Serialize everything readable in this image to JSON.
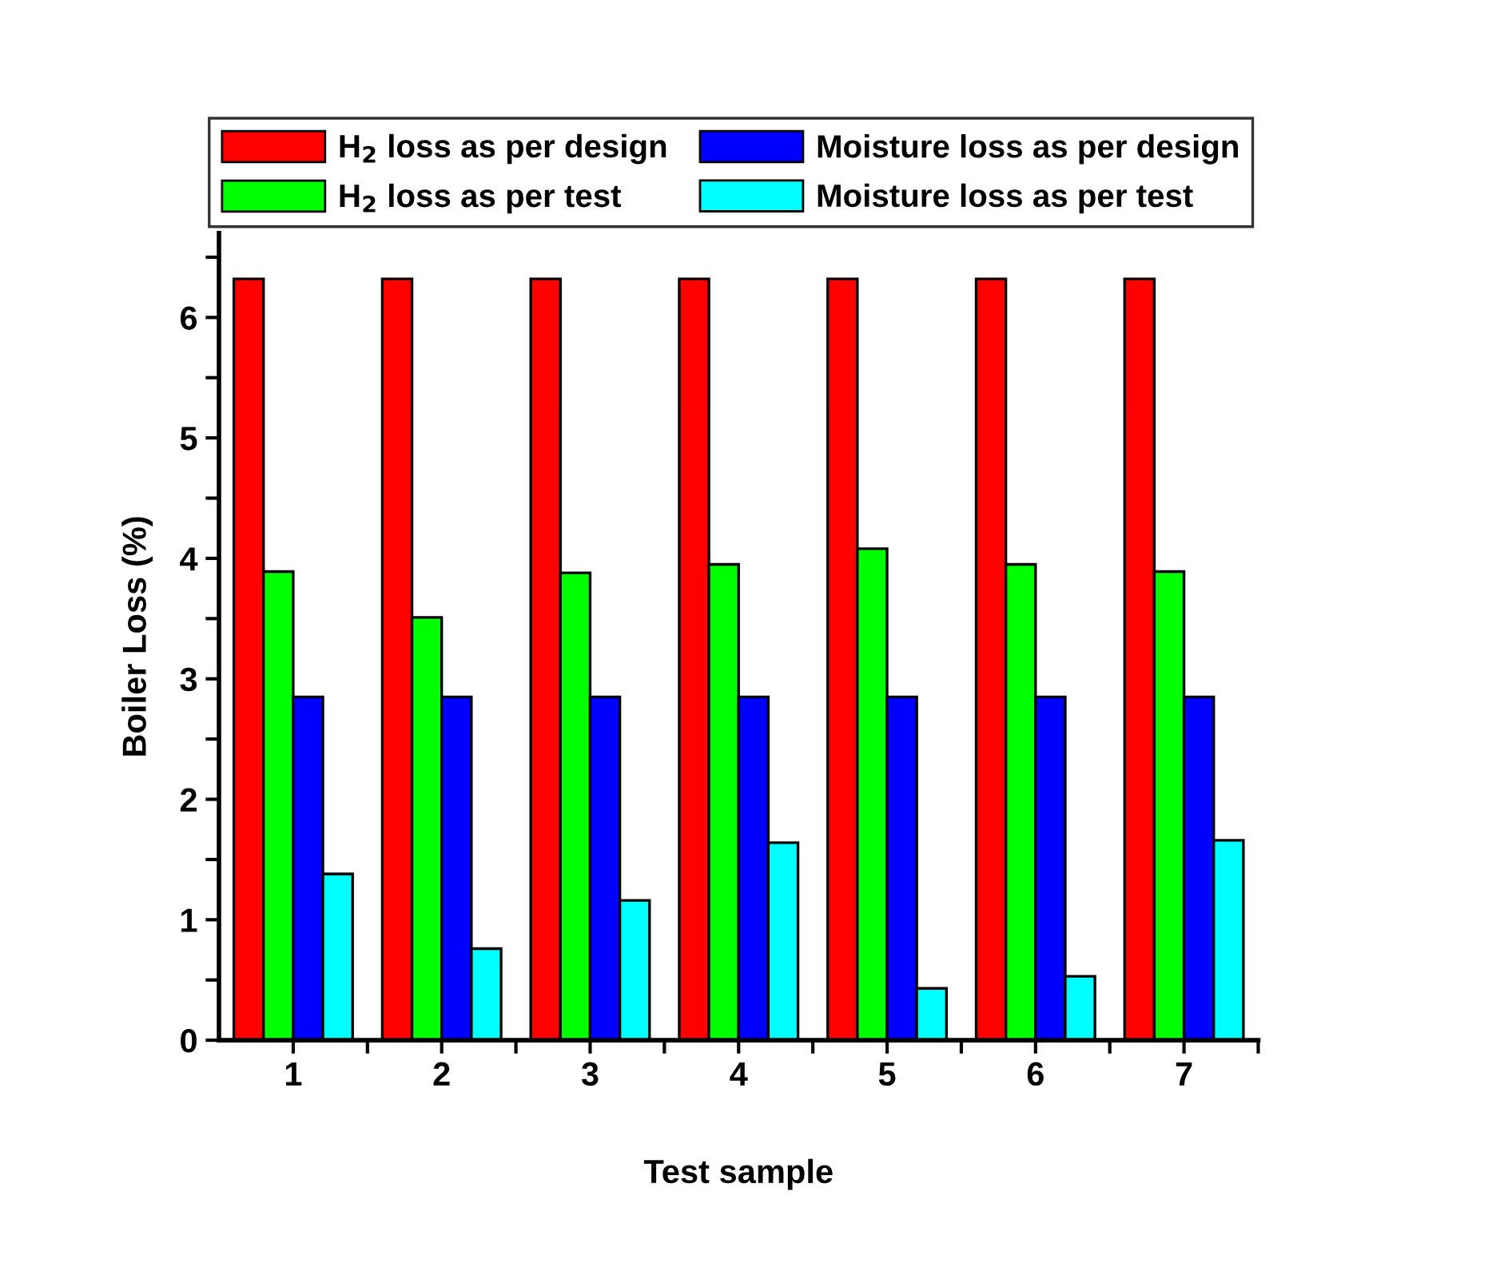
{
  "chart_data": {
    "type": "bar",
    "xlabel": "Test sample",
    "ylabel": "Boiler Loss (%)",
    "x": [
      1,
      2,
      3,
      4,
      5,
      6,
      7
    ],
    "series": [
      {
        "name": "H$_{2}$ loss as per design",
        "color": "#ff0000",
        "values": [
          6.32,
          6.32,
          6.32,
          6.32,
          6.32,
          6.32,
          6.32
        ]
      },
      {
        "name": "H$_{2}$ loss as per test",
        "color": "#00ff00",
        "values": [
          3.89,
          3.51,
          3.88,
          3.95,
          4.08,
          3.95,
          3.89
        ]
      },
      {
        "name": "Moisture loss as per design",
        "color": "#0000ff",
        "values": [
          2.85,
          2.85,
          2.85,
          2.85,
          2.85,
          2.85,
          2.85
        ]
      },
      {
        "name": "Moisture loss as per test",
        "color": "#00ffff",
        "values": [
          1.38,
          0.76,
          1.16,
          1.64,
          0.43,
          0.53,
          1.66
        ]
      }
    ],
    "xlim": [
      0.5,
      7.5
    ],
    "xticks": [
      1,
      {
        "value": 1.5,
        "label": null
      },
      2,
      {
        "value": 2.5,
        "label": null
      },
      3,
      {
        "value": 3.5,
        "label": null
      },
      4,
      {
        "value": 4.5,
        "label": null
      },
      5,
      {
        "value": 5.5,
        "label": null
      },
      6,
      {
        "value": 6.5,
        "label": null
      },
      7,
      {
        "value": 7.5,
        "label": null
      }
    ],
    "ylim": [
      0,
      6.7
    ],
    "yticks": [
      0,
      {
        "value": 0.5,
        "label": null
      },
      1,
      {
        "value": 1.5,
        "label": null
      },
      2,
      {
        "value": 2.5,
        "label": null
      },
      3,
      {
        "value": 3.5,
        "label": null
      },
      4,
      {
        "value": 4.5,
        "label": null
      },
      5,
      {
        "value": 5.5,
        "label": null
      },
      6,
      {
        "value": 6.5,
        "label": null
      }
    ],
    "legend": "top",
    "grid": false
  }
}
